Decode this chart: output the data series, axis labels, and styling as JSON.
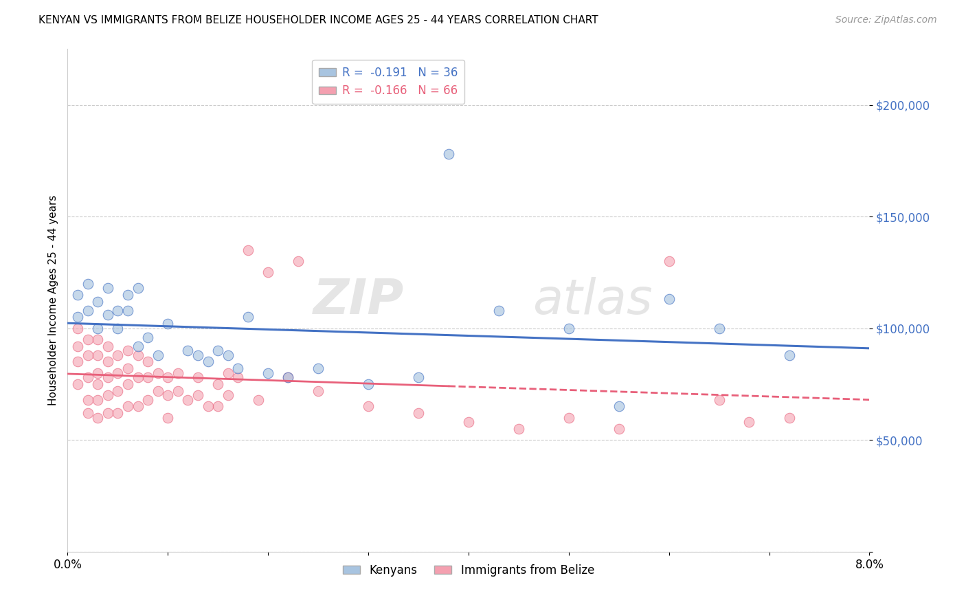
{
  "title": "KENYAN VS IMMIGRANTS FROM BELIZE HOUSEHOLDER INCOME AGES 25 - 44 YEARS CORRELATION CHART",
  "source": "Source: ZipAtlas.com",
  "ylabel": "Householder Income Ages 25 - 44 years",
  "x_min": 0.0,
  "x_max": 0.08,
  "y_min": 0,
  "y_max": 225000,
  "yticks": [
    0,
    50000,
    100000,
    150000,
    200000
  ],
  "ytick_labels": [
    "",
    "$50,000",
    "$100,000",
    "$150,000",
    "$200,000"
  ],
  "xticks": [
    0.0,
    0.01,
    0.02,
    0.03,
    0.04,
    0.05,
    0.06,
    0.07,
    0.08
  ],
  "xtick_labels": [
    "0.0%",
    "",
    "",
    "",
    "",
    "",
    "",
    "",
    "8.0%"
  ],
  "legend_entry1": "R =  -0.191   N = 36",
  "legend_entry2": "R =  -0.166   N = 66",
  "legend_label1": "Kenyans",
  "legend_label2": "Immigrants from Belize",
  "color_blue": "#A8C4E0",
  "color_pink": "#F4A0B0",
  "color_blue_line": "#4472C4",
  "color_pink_line": "#E8607A",
  "blue_scatter_x": [
    0.001,
    0.001,
    0.002,
    0.002,
    0.003,
    0.003,
    0.004,
    0.004,
    0.005,
    0.005,
    0.006,
    0.006,
    0.007,
    0.007,
    0.008,
    0.009,
    0.01,
    0.012,
    0.013,
    0.014,
    0.015,
    0.016,
    0.017,
    0.018,
    0.02,
    0.022,
    0.025,
    0.03,
    0.035,
    0.038,
    0.043,
    0.05,
    0.055,
    0.06,
    0.065,
    0.072
  ],
  "blue_scatter_y": [
    105000,
    115000,
    108000,
    120000,
    100000,
    112000,
    106000,
    118000,
    100000,
    108000,
    115000,
    108000,
    118000,
    92000,
    96000,
    88000,
    102000,
    90000,
    88000,
    85000,
    90000,
    88000,
    82000,
    105000,
    80000,
    78000,
    82000,
    75000,
    78000,
    178000,
    108000,
    100000,
    65000,
    113000,
    100000,
    88000
  ],
  "pink_scatter_x": [
    0.001,
    0.001,
    0.001,
    0.001,
    0.002,
    0.002,
    0.002,
    0.002,
    0.002,
    0.003,
    0.003,
    0.003,
    0.003,
    0.003,
    0.003,
    0.004,
    0.004,
    0.004,
    0.004,
    0.004,
    0.005,
    0.005,
    0.005,
    0.005,
    0.006,
    0.006,
    0.006,
    0.006,
    0.007,
    0.007,
    0.007,
    0.008,
    0.008,
    0.008,
    0.009,
    0.009,
    0.01,
    0.01,
    0.01,
    0.011,
    0.011,
    0.012,
    0.013,
    0.013,
    0.014,
    0.015,
    0.015,
    0.016,
    0.016,
    0.017,
    0.018,
    0.019,
    0.02,
    0.022,
    0.023,
    0.025,
    0.03,
    0.035,
    0.04,
    0.045,
    0.05,
    0.055,
    0.06,
    0.065,
    0.068,
    0.072
  ],
  "pink_scatter_y": [
    100000,
    92000,
    85000,
    75000,
    95000,
    88000,
    78000,
    68000,
    62000,
    95000,
    88000,
    80000,
    75000,
    68000,
    60000,
    92000,
    85000,
    78000,
    70000,
    62000,
    88000,
    80000,
    72000,
    62000,
    90000,
    82000,
    75000,
    65000,
    88000,
    78000,
    65000,
    85000,
    78000,
    68000,
    80000,
    72000,
    78000,
    70000,
    60000,
    80000,
    72000,
    68000,
    78000,
    70000,
    65000,
    75000,
    65000,
    80000,
    70000,
    78000,
    135000,
    68000,
    125000,
    78000,
    130000,
    72000,
    65000,
    62000,
    58000,
    55000,
    60000,
    55000,
    130000,
    68000,
    58000,
    60000
  ]
}
